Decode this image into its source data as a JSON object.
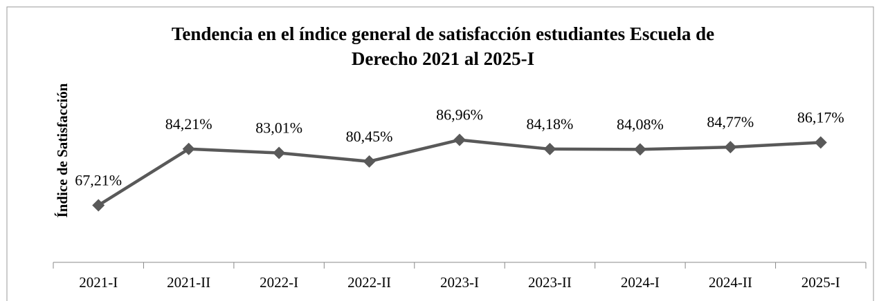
{
  "chart_data": {
    "type": "line",
    "title": [
      "Tendencia en el índice general de satisfacción estudiantes Escuela de",
      "Derecho 2021 al 2025-I"
    ],
    "y_label": "Índice de Satisfacción",
    "categories": [
      "2021-I",
      "2021-II",
      "2022-I",
      "2022-II",
      "2023-I",
      "2023-II",
      "2024-I",
      "2024-II",
      "2025-I"
    ],
    "series": [
      {
        "name": "Índice",
        "color": "#595959",
        "values": [
          67.21,
          84.21,
          83.01,
          80.45,
          86.96,
          84.18,
          84.08,
          84.77,
          86.17
        ],
        "value_labels": [
          "67,21%",
          "84,21%",
          "83,01%",
          "80,45%",
          "86,96%",
          "84,18%",
          "84,08%",
          "84,77%",
          "86,17%"
        ]
      }
    ],
    "ylim": [
      50,
      100
    ]
  }
}
